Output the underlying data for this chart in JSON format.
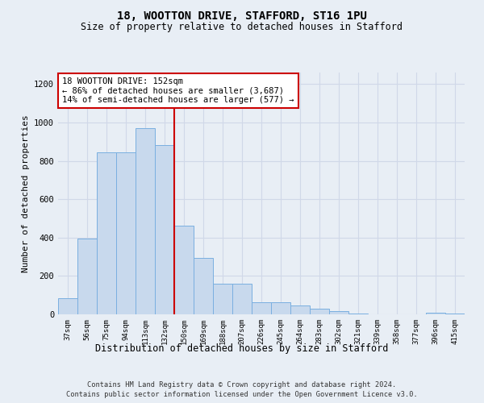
{
  "title_line1": "18, WOOTTON DRIVE, STAFFORD, ST16 1PU",
  "title_line2": "Size of property relative to detached houses in Stafford",
  "xlabel": "Distribution of detached houses by size in Stafford",
  "ylabel": "Number of detached properties",
  "categories": [
    "37sqm",
    "56sqm",
    "75sqm",
    "94sqm",
    "113sqm",
    "132sqm",
    "150sqm",
    "169sqm",
    "188sqm",
    "207sqm",
    "226sqm",
    "245sqm",
    "264sqm",
    "283sqm",
    "302sqm",
    "321sqm",
    "339sqm",
    "358sqm",
    "377sqm",
    "396sqm",
    "415sqm"
  ],
  "values": [
    85,
    395,
    845,
    845,
    970,
    880,
    460,
    295,
    160,
    160,
    65,
    65,
    48,
    30,
    18,
    5,
    0,
    0,
    0,
    8,
    5
  ],
  "bar_color": "#c8d9ed",
  "bar_edge_color": "#7aafe0",
  "vline_index": 6,
  "vline_color": "#cc0000",
  "annotation_text": "18 WOOTTON DRIVE: 152sqm\n← 86% of detached houses are smaller (3,687)\n14% of semi-detached houses are larger (577) →",
  "annotation_box_facecolor": "#ffffff",
  "annotation_box_edgecolor": "#cc0000",
  "ylim": [
    0,
    1260
  ],
  "yticks": [
    0,
    200,
    400,
    600,
    800,
    1000,
    1200
  ],
  "grid_color": "#d0d8e8",
  "background_color": "#e8eef5",
  "footnote1": "Contains HM Land Registry data © Crown copyright and database right 2024.",
  "footnote2": "Contains public sector information licensed under the Open Government Licence v3.0."
}
